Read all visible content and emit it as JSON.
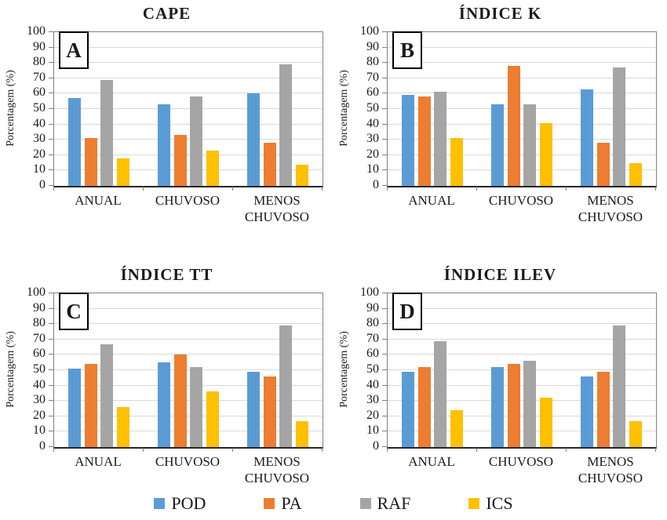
{
  "figure": {
    "y_axis_title": "Porcentagem (%)",
    "colors": {
      "pod_blue": "#5B9BD5",
      "pa_orange": "#ED7D31",
      "raf_gray": "#A5A5A5",
      "ics_yellow": "#FFC000",
      "gridline": "#d9d9d9",
      "plot_frame": "#808080",
      "axis_line": "#262626"
    }
  },
  "legend": {
    "items": [
      {
        "label": "POD",
        "color": "#5B9BD5"
      },
      {
        "label": "PA",
        "color": "#ED7D31"
      },
      {
        "label": "RAF",
        "color": "#A5A5A5"
      },
      {
        "label": "ICS",
        "color": "#FFC000"
      }
    ]
  },
  "chart_data": [
    {
      "type": "bar",
      "panel_letter": "A",
      "title": "CAPE",
      "ylabel": "Porcentagem (%)",
      "ylim": [
        0,
        100
      ],
      "ytick_step": 10,
      "grid": true,
      "legend_position": "shared-bottom",
      "categories": [
        "ANUAL",
        "CHUVOSO",
        "MENOS CHUVOSO"
      ],
      "series": [
        {
          "name": "POD",
          "color": "#5B9BD5",
          "values": [
            57,
            53,
            60
          ]
        },
        {
          "name": "PA",
          "color": "#ED7D31",
          "values": [
            31,
            33,
            28
          ]
        },
        {
          "name": "RAF",
          "color": "#A5A5A5",
          "values": [
            69,
            58,
            79
          ]
        },
        {
          "name": "ICS",
          "color": "#FFC000",
          "values": [
            18,
            23,
            14
          ]
        }
      ]
    },
    {
      "type": "bar",
      "panel_letter": "B",
      "title": "ÍNDICE K",
      "ylabel": "Porcentagem (%)",
      "ylim": [
        0,
        100
      ],
      "ytick_step": 10,
      "grid": true,
      "legend_position": "shared-bottom",
      "categories": [
        "ANUAL",
        "CHUVOSO",
        "MENOS CHUVOSO"
      ],
      "series": [
        {
          "name": "POD",
          "color": "#5B9BD5",
          "values": [
            59,
            53,
            63
          ]
        },
        {
          "name": "PA",
          "color": "#ED7D31",
          "values": [
            58,
            78,
            28
          ]
        },
        {
          "name": "RAF",
          "color": "#A5A5A5",
          "values": [
            61,
            53,
            77
          ]
        },
        {
          "name": "ICS",
          "color": "#FFC000",
          "values": [
            31,
            41,
            15
          ]
        }
      ]
    },
    {
      "type": "bar",
      "panel_letter": "C",
      "title": "ÍNDICE TT",
      "ylabel": "Porcentagem (%)",
      "ylim": [
        0,
        100
      ],
      "ytick_step": 10,
      "grid": true,
      "legend_position": "shared-bottom",
      "categories": [
        "ANUAL",
        "CHUVOSO",
        "MENOS CHUVOSO"
      ],
      "series": [
        {
          "name": "POD",
          "color": "#5B9BD5",
          "values": [
            51,
            55,
            49
          ]
        },
        {
          "name": "PA",
          "color": "#ED7D31",
          "values": [
            54,
            60,
            46
          ]
        },
        {
          "name": "RAF",
          "color": "#A5A5A5",
          "values": [
            67,
            52,
            79
          ]
        },
        {
          "name": "ICS",
          "color": "#FFC000",
          "values": [
            26,
            36,
            17
          ]
        }
      ]
    },
    {
      "type": "bar",
      "panel_letter": "D",
      "title": "ÍNDICE ILEV",
      "ylabel": "Porcentagem (%)",
      "ylim": [
        0,
        100
      ],
      "ytick_step": 10,
      "grid": true,
      "legend_position": "shared-bottom",
      "categories": [
        "ANUAL",
        "CHUVOSO",
        "MENOS CHUVOSO"
      ],
      "series": [
        {
          "name": "POD",
          "color": "#5B9BD5",
          "values": [
            49,
            52,
            46
          ]
        },
        {
          "name": "PA",
          "color": "#ED7D31",
          "values": [
            52,
            54,
            49
          ]
        },
        {
          "name": "RAF",
          "color": "#A5A5A5",
          "values": [
            69,
            56,
            79
          ]
        },
        {
          "name": "ICS",
          "color": "#FFC000",
          "values": [
            24,
            32,
            17
          ]
        }
      ]
    }
  ]
}
